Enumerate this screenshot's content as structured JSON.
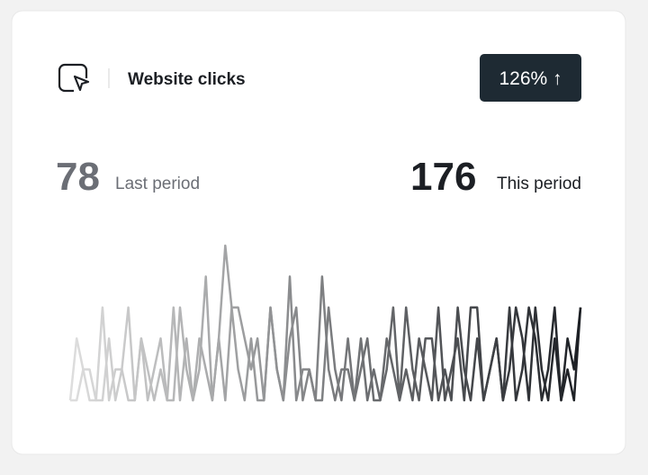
{
  "card": {
    "title": "Website clicks",
    "badge": "126% ↑",
    "last": {
      "value": 78,
      "label": "Last period"
    },
    "this": {
      "value": 176,
      "label": "This period"
    }
  },
  "chart_data": {
    "type": "line",
    "gradient": [
      "#dedede",
      "#1c1f24"
    ],
    "series": [
      {
        "values": [
          0,
          2,
          1,
          0,
          0,
          3,
          0,
          1,
          1,
          3,
          0,
          2,
          0,
          1,
          2,
          0,
          0,
          3,
          1,
          0,
          2,
          1,
          0,
          2,
          5,
          3,
          3,
          2,
          1,
          2,
          0,
          3,
          1,
          0,
          2,
          3,
          0,
          1,
          0,
          4,
          1,
          0,
          1,
          1,
          0,
          2,
          0,
          1,
          0,
          2,
          1,
          0,
          3,
          1,
          0,
          2,
          2,
          0,
          1,
          0,
          3,
          1,
          0,
          2,
          0,
          1,
          2,
          0,
          3,
          0,
          1,
          3,
          2,
          0,
          1,
          3,
          0,
          2,
          1,
          3
        ]
      },
      {
        "values": [
          0,
          0,
          1,
          1,
          0,
          0,
          2,
          0,
          1,
          0,
          0,
          2,
          1,
          0,
          1,
          0,
          3,
          0,
          2,
          0,
          1,
          4,
          0,
          2,
          0,
          3,
          1,
          0,
          2,
          0,
          0,
          3,
          1,
          0,
          4,
          0,
          1,
          1,
          0,
          0,
          3,
          1,
          0,
          2,
          0,
          1,
          2,
          0,
          0,
          1,
          3,
          0,
          1,
          0,
          2,
          1,
          0,
          3,
          0,
          1,
          2,
          0,
          3,
          3,
          0,
          1,
          2,
          0,
          1,
          3,
          2,
          0,
          3,
          1,
          0,
          2,
          0,
          1,
          0,
          3
        ]
      }
    ]
  }
}
